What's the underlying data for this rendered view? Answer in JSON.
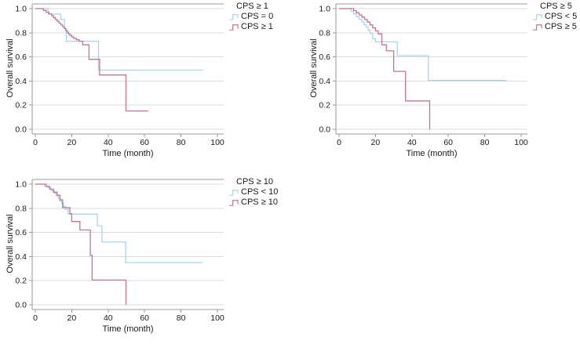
{
  "figure": {
    "colors": {
      "background": "#ffffff",
      "gridline": "#DBDBDB",
      "axis": "#9A9A9A",
      "text": "#1A1A1A",
      "group_low": "#A5D5F3",
      "group_high": "#C4758F"
    }
  },
  "chart_data": [
    {
      "type": "line",
      "subtype": "kaplan-meier-step",
      "legend_title": "CPS ≥ 1",
      "legend_position": "right",
      "xlabel": "Time (month)",
      "ylabel": "Overall survival",
      "x_ticks": [
        0,
        20,
        40,
        60,
        80,
        100
      ],
      "y_ticks": [
        "0.0",
        "0.2",
        "0.4",
        "0.6",
        "0.8",
        "1.0"
      ],
      "xlim": [
        0,
        103
      ],
      "ylim": [
        0,
        1
      ],
      "grid": "horizontal",
      "series": [
        {
          "name": "CPS = 0",
          "color": "#A5D5F3",
          "points": [
            [
              0,
              1
            ],
            [
              7,
              1
            ],
            [
              7,
              0.955
            ],
            [
              14,
              0.955
            ],
            [
              14,
              0.91
            ],
            [
              16,
              0.91
            ],
            [
              16,
              0.835
            ],
            [
              17,
              0.835
            ],
            [
              17,
              0.73
            ],
            [
              34.7,
              0.73
            ],
            [
              34.7,
              0.49
            ],
            [
              92,
              0.49
            ]
          ]
        },
        {
          "name": "CPS ≥ 1",
          "color": "#C4758F",
          "points": [
            [
              0,
              1
            ],
            [
              4.5,
              1
            ],
            [
              4.5,
              0.985
            ],
            [
              6,
              0.985
            ],
            [
              6,
              0.97
            ],
            [
              7.5,
              0.97
            ],
            [
              7.5,
              0.955
            ],
            [
              9,
              0.955
            ],
            [
              9,
              0.94
            ],
            [
              10,
              0.94
            ],
            [
              10,
              0.925
            ],
            [
              11,
              0.925
            ],
            [
              11,
              0.91
            ],
            [
              12,
              0.91
            ],
            [
              12,
              0.895
            ],
            [
              13,
              0.895
            ],
            [
              13,
              0.88
            ],
            [
              14,
              0.88
            ],
            [
              14,
              0.865
            ],
            [
              15,
              0.865
            ],
            [
              15,
              0.85
            ],
            [
              15.8,
              0.85
            ],
            [
              15.8,
              0.835
            ],
            [
              16.6,
              0.835
            ],
            [
              16.6,
              0.82
            ],
            [
              17.4,
              0.82
            ],
            [
              17.4,
              0.805
            ],
            [
              18.2,
              0.805
            ],
            [
              18.2,
              0.79
            ],
            [
              19,
              0.79
            ],
            [
              19,
              0.778
            ],
            [
              20,
              0.778
            ],
            [
              20,
              0.765
            ],
            [
              21,
              0.765
            ],
            [
              21,
              0.753
            ],
            [
              22.5,
              0.753
            ],
            [
              22.5,
              0.742
            ],
            [
              24,
              0.742
            ],
            [
              24,
              0.73
            ],
            [
              26,
              0.73
            ],
            [
              26,
              0.7
            ],
            [
              29.5,
              0.7
            ],
            [
              29.5,
              0.58
            ],
            [
              35.3,
              0.58
            ],
            [
              35.3,
              0.45
            ],
            [
              49.8,
              0.45
            ],
            [
              49.8,
              0.152
            ],
            [
              62,
              0.152
            ]
          ]
        }
      ]
    },
    {
      "type": "line",
      "subtype": "kaplan-meier-step",
      "legend_title": "CPS ≥ 5",
      "legend_position": "right",
      "xlabel": "Time (month)",
      "ylabel": "Overall survival",
      "x_ticks": [
        0,
        20,
        40,
        60,
        80,
        100
      ],
      "y_ticks": [
        "0.0",
        "0.2",
        "0.4",
        "0.6",
        "0.8",
        "1.0"
      ],
      "xlim": [
        0,
        103
      ],
      "ylim": [
        0,
        1
      ],
      "grid": "horizontal",
      "series": [
        {
          "name": "CPS < 5",
          "color": "#A5D5F3",
          "points": [
            [
              0,
              1
            ],
            [
              6.5,
              1
            ],
            [
              6.5,
              0.978
            ],
            [
              8,
              0.978
            ],
            [
              8,
              0.956
            ],
            [
              9.5,
              0.956
            ],
            [
              9.5,
              0.934
            ],
            [
              11,
              0.934
            ],
            [
              11,
              0.912
            ],
            [
              12.5,
              0.912
            ],
            [
              12.5,
              0.889
            ],
            [
              13.8,
              0.889
            ],
            [
              13.8,
              0.867
            ],
            [
              15,
              0.867
            ],
            [
              15,
              0.845
            ],
            [
              16,
              0.845
            ],
            [
              16,
              0.82
            ],
            [
              17,
              0.82
            ],
            [
              17,
              0.795
            ],
            [
              18.5,
              0.795
            ],
            [
              18.5,
              0.75
            ],
            [
              20,
              0.75
            ],
            [
              20,
              0.725
            ],
            [
              32,
              0.725
            ],
            [
              32,
              0.61
            ],
            [
              49,
              0.61
            ],
            [
              49,
              0.405
            ],
            [
              92,
              0.405
            ]
          ]
        },
        {
          "name": "CPS ≥ 5",
          "color": "#C4758F",
          "points": [
            [
              0,
              1
            ],
            [
              8,
              1
            ],
            [
              8,
              0.983
            ],
            [
              9.5,
              0.983
            ],
            [
              9.5,
              0.966
            ],
            [
              11,
              0.966
            ],
            [
              11,
              0.948
            ],
            [
              12.5,
              0.948
            ],
            [
              12.5,
              0.93
            ],
            [
              14,
              0.93
            ],
            [
              14,
              0.91
            ],
            [
              15.5,
              0.91
            ],
            [
              15.5,
              0.888
            ],
            [
              17,
              0.888
            ],
            [
              17,
              0.865
            ],
            [
              18.5,
              0.865
            ],
            [
              18.5,
              0.84
            ],
            [
              20,
              0.84
            ],
            [
              20,
              0.815
            ],
            [
              21.5,
              0.815
            ],
            [
              21.5,
              0.79
            ],
            [
              23.5,
              0.79
            ],
            [
              23.5,
              0.7
            ],
            [
              26,
              0.7
            ],
            [
              26,
              0.65
            ],
            [
              30,
              0.65
            ],
            [
              30,
              0.48
            ],
            [
              36.5,
              0.48
            ],
            [
              36.5,
              0.235
            ],
            [
              49.8,
              0.235
            ],
            [
              49.8,
              0
            ]
          ]
        }
      ]
    },
    {
      "type": "line",
      "subtype": "kaplan-meier-step",
      "legend_title": "CPS ≥ 10",
      "legend_position": "right",
      "xlabel": "Time (month)",
      "ylabel": "Overall survival",
      "x_ticks": [
        0,
        20,
        40,
        60,
        80,
        100
      ],
      "y_ticks": [
        "0.0",
        "0.2",
        "0.4",
        "0.6",
        "0.8",
        "1.0"
      ],
      "xlim": [
        0,
        103
      ],
      "ylim": [
        0,
        1
      ],
      "grid": "horizontal",
      "series": [
        {
          "name": "CPS < 10",
          "color": "#A5D5F3",
          "points": [
            [
              0,
              1
            ],
            [
              5,
              1
            ],
            [
              5,
              0.983
            ],
            [
              7.5,
              0.983
            ],
            [
              7.5,
              0.965
            ],
            [
              9,
              0.965
            ],
            [
              9,
              0.945
            ],
            [
              10.5,
              0.945
            ],
            [
              10.5,
              0.925
            ],
            [
              11.5,
              0.925
            ],
            [
              11.5,
              0.905
            ],
            [
              12.5,
              0.905
            ],
            [
              12.5,
              0.885
            ],
            [
              13.5,
              0.885
            ],
            [
              13.5,
              0.862
            ],
            [
              14.5,
              0.862
            ],
            [
              14.5,
              0.84
            ],
            [
              15.5,
              0.84
            ],
            [
              15.5,
              0.815
            ],
            [
              16.5,
              0.815
            ],
            [
              16.5,
              0.79
            ],
            [
              18,
              0.79
            ],
            [
              18,
              0.752
            ],
            [
              34,
              0.752
            ],
            [
              34,
              0.655
            ],
            [
              36.6,
              0.655
            ],
            [
              36.6,
              0.52
            ],
            [
              49.6,
              0.52
            ],
            [
              49.6,
              0.35
            ],
            [
              92,
              0.35
            ]
          ]
        },
        {
          "name": "CPS ≥ 10",
          "color": "#C4758F",
          "points": [
            [
              0,
              1
            ],
            [
              6,
              1
            ],
            [
              6,
              0.98
            ],
            [
              8,
              0.98
            ],
            [
              8,
              0.957
            ],
            [
              10,
              0.957
            ],
            [
              10,
              0.933
            ],
            [
              12,
              0.933
            ],
            [
              12,
              0.908
            ],
            [
              13.5,
              0.908
            ],
            [
              13.5,
              0.87
            ],
            [
              15,
              0.87
            ],
            [
              15,
              0.805
            ],
            [
              19,
              0.805
            ],
            [
              19,
              0.755
            ],
            [
              20,
              0.755
            ],
            [
              20,
              0.69
            ],
            [
              24.5,
              0.69
            ],
            [
              24.5,
              0.62
            ],
            [
              30.2,
              0.62
            ],
            [
              30.2,
              0.41
            ],
            [
              31.2,
              0.41
            ],
            [
              31.2,
              0.205
            ],
            [
              49.8,
              0.205
            ],
            [
              49.8,
              0
            ]
          ]
        }
      ]
    }
  ]
}
